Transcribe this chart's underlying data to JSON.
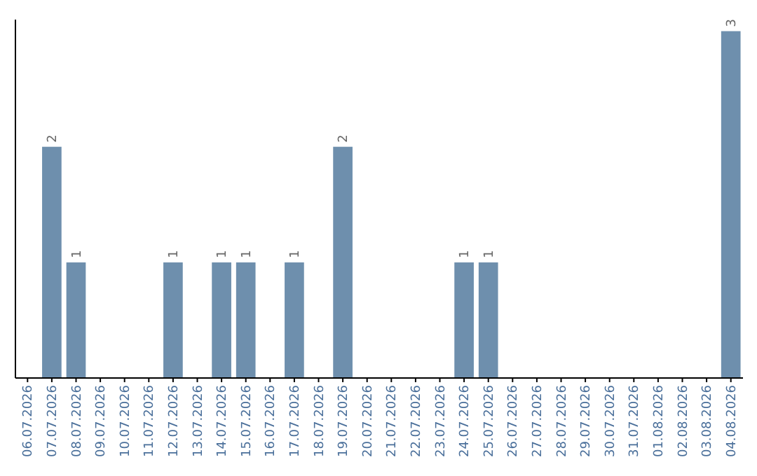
{
  "chart_data": {
    "type": "bar",
    "categories": [
      "06.07.2026",
      "07.07.2026",
      "08.07.2026",
      "09.07.2026",
      "10.07.2026",
      "11.07.2026",
      "12.07.2026",
      "13.07.2026",
      "14.07.2026",
      "15.07.2026",
      "16.07.2026",
      "17.07.2026",
      "18.07.2026",
      "19.07.2026",
      "20.07.2026",
      "21.07.2026",
      "22.07.2026",
      "23.07.2026",
      "24.07.2026",
      "25.07.2026",
      "26.07.2026",
      "27.07.2026",
      "28.07.2026",
      "29.07.2026",
      "30.07.2026",
      "31.07.2026",
      "01.08.2026",
      "02.08.2026",
      "03.08.2026",
      "04.08.2026"
    ],
    "values": [
      0,
      2,
      1,
      0,
      0,
      0,
      1,
      0,
      1,
      1,
      0,
      1,
      0,
      2,
      0,
      0,
      0,
      0,
      1,
      1,
      0,
      0,
      0,
      0,
      0,
      0,
      0,
      0,
      0,
      3
    ],
    "value_labels": [
      null,
      "2",
      "1",
      null,
      null,
      null,
      "1",
      null,
      "1",
      "1",
      null,
      "1",
      null,
      "2",
      null,
      null,
      null,
      null,
      "1",
      "1",
      null,
      null,
      null,
      null,
      null,
      null,
      null,
      null,
      null,
      "3"
    ],
    "color": "#6e8fad",
    "ylim": [
      0,
      3.1
    ],
    "tick_labels": "x"
  }
}
